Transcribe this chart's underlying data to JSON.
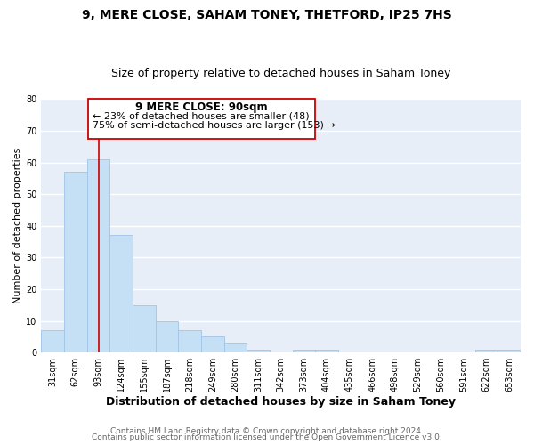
{
  "title": "9, MERE CLOSE, SAHAM TONEY, THETFORD, IP25 7HS",
  "subtitle": "Size of property relative to detached houses in Saham Toney",
  "xlabel": "Distribution of detached houses by size in Saham Toney",
  "ylabel": "Number of detached properties",
  "categories": [
    "31sqm",
    "62sqm",
    "93sqm",
    "124sqm",
    "155sqm",
    "187sqm",
    "218sqm",
    "249sqm",
    "280sqm",
    "311sqm",
    "342sqm",
    "373sqm",
    "404sqm",
    "435sqm",
    "466sqm",
    "498sqm",
    "529sqm",
    "560sqm",
    "591sqm",
    "622sqm",
    "653sqm"
  ],
  "values": [
    7,
    57,
    61,
    37,
    15,
    10,
    7,
    5,
    3,
    1,
    0,
    1,
    1,
    0,
    0,
    0,
    0,
    0,
    0,
    1,
    1
  ],
  "bar_color": "#c5dff5",
  "bar_edge_color": "#a0c4e8",
  "vline_x": 2,
  "vline_color": "#cc0000",
  "ylim": [
    0,
    80
  ],
  "yticks": [
    0,
    10,
    20,
    30,
    40,
    50,
    60,
    70,
    80
  ],
  "annotation_title": "9 MERE CLOSE: 90sqm",
  "annotation_line1": "← 23% of detached houses are smaller (48)",
  "annotation_line2": "75% of semi-detached houses are larger (153) →",
  "annotation_box_color": "#ffffff",
  "annotation_box_edge": "#cc0000",
  "footer_line1": "Contains HM Land Registry data © Crown copyright and database right 2024.",
  "footer_line2": "Contains public sector information licensed under the Open Government Licence v3.0.",
  "figure_background": "#ffffff",
  "plot_background": "#e8eef8",
  "grid_color": "#ffffff",
  "title_fontsize": 10,
  "subtitle_fontsize": 9,
  "xlabel_fontsize": 9,
  "ylabel_fontsize": 8,
  "tick_fontsize": 7,
  "footer_fontsize": 6.5,
  "annotation_title_fontsize": 8.5,
  "annotation_text_fontsize": 8
}
